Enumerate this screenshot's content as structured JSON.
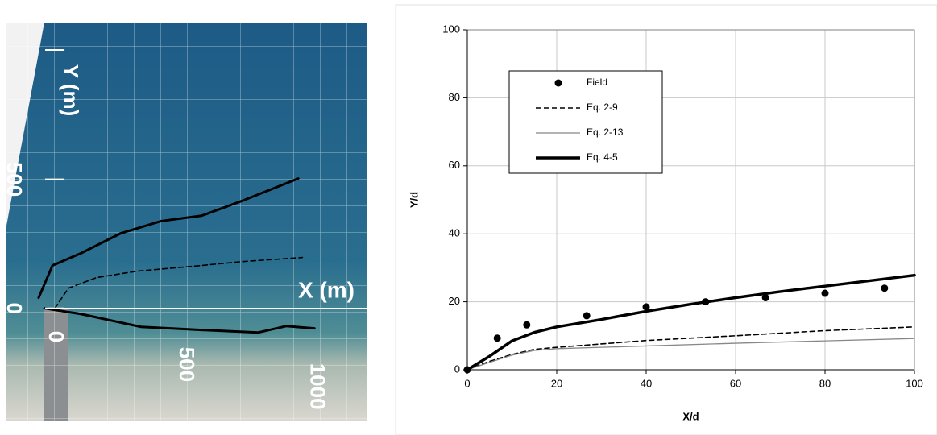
{
  "chart_data": [
    {
      "type": "map",
      "xlabel": "X (m)",
      "ylabel": "Y (m)",
      "xlim": [
        -210,
        1200
      ],
      "ylim": [
        -435,
        1195
      ],
      "xticks": [
        0,
        500,
        1000
      ],
      "yticks": [
        0,
        500
      ],
      "series": [
        {
          "style": "solid",
          "color": "#000000",
          "x": [
            -62,
            -9,
            99,
            253,
            407,
            562,
            716,
            932
          ],
          "values": [
            41,
            166,
            213,
            291,
            338,
            359,
            416,
            503
          ]
        },
        {
          "style": "dashed",
          "color": "#000000",
          "x": [
            0,
            52,
            160,
            315,
            562,
            716,
            948
          ],
          "values": [
            0,
            78,
            119,
            144,
            166,
            181,
            197
          ]
        },
        {
          "style": "solid",
          "color": "#000000",
          "x": [
            -40,
            99,
            330,
            562,
            778,
            886,
            994
          ],
          "values": [
            0,
            -22,
            -72,
            -84,
            -94,
            -69,
            -78
          ]
        }
      ]
    },
    {
      "type": "line",
      "xlabel": "X/d",
      "ylabel": "Y/d",
      "xlim": [
        0,
        100
      ],
      "ylim": [
        0,
        100
      ],
      "xticks": [
        0,
        20,
        40,
        60,
        80,
        100
      ],
      "yticks": [
        0,
        20,
        40,
        60,
        80,
        100
      ],
      "grid": true,
      "series": [
        {
          "name": "Field",
          "style": "markers",
          "color": "#000000",
          "x": [
            0,
            6.7,
            13.3,
            26.7,
            40,
            53.3,
            66.7,
            80,
            93.3
          ],
          "values": [
            0,
            9.3,
            13.2,
            15.9,
            18.5,
            20,
            21.2,
            22.5,
            24
          ]
        },
        {
          "name": "Eq. 2-9",
          "style": "dashed",
          "color": "#000000",
          "x": [
            0,
            5,
            10,
            15,
            20,
            40,
            60,
            80,
            100
          ],
          "values": [
            0,
            2.5,
            4.5,
            6,
            6.6,
            8.6,
            10,
            11.5,
            12.6
          ]
        },
        {
          "name": "Eq. 2-13",
          "style": "thin",
          "color": "#888888",
          "x": [
            0,
            5,
            10,
            15,
            20,
            40,
            60,
            80,
            100
          ],
          "values": [
            0,
            2.2,
            4.3,
            5.7,
            6.2,
            7,
            7.8,
            8.5,
            9.2
          ]
        },
        {
          "name": "Eq. 4-5",
          "style": "thick",
          "color": "#000000",
          "x": [
            0,
            5,
            10,
            15,
            20,
            30,
            40,
            50,
            60,
            70,
            80,
            90,
            100
          ],
          "values": [
            0,
            4,
            8.5,
            11,
            12.6,
            14.8,
            17.2,
            19.3,
            21.2,
            23,
            24.6,
            26.2,
            27.8
          ]
        }
      ]
    }
  ]
}
